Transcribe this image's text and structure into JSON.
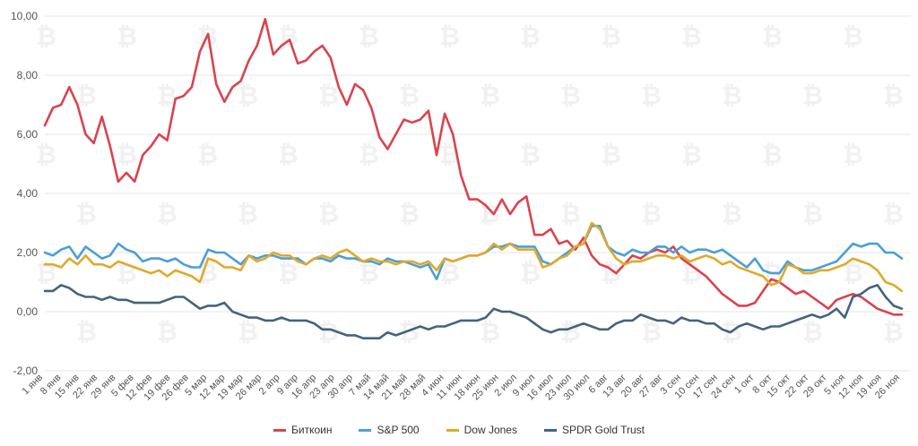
{
  "chart_data": {
    "type": "line",
    "title": "",
    "xlabel": "",
    "ylabel": "",
    "ylim": [
      -2,
      10
    ],
    "y_ticks": [
      "-2,00",
      "0,00",
      "2,00",
      "4,00",
      "6,00",
      "8,00",
      "10,00"
    ],
    "y_tick_values": [
      -2,
      0,
      2,
      4,
      6,
      8,
      10
    ],
    "grid": true,
    "legend_position": "bottom",
    "x_tick_labels": [
      "1 янв",
      "8 янв",
      "15 янв",
      "22 янв",
      "29 янв",
      "5 фев",
      "12 фев",
      "19 фев",
      "26 фев",
      "5 мар",
      "12 мар",
      "19 мар",
      "26 мар",
      "2 апр",
      "9 апр",
      "16 апр",
      "23 апр",
      "30 апр",
      "7 май",
      "14 май",
      "21 май",
      "28 май",
      "4 июн",
      "11 июн",
      "18 июн",
      "25 июн",
      "2 июл",
      "9 июл",
      "16 июл",
      "23 июл",
      "30 июл",
      "6 авг",
      "13 авг",
      "20 авг",
      "27 авг",
      "3 сен",
      "10 сен",
      "17 сен",
      "24 сен",
      "1 окт",
      "8 окт",
      "15 окт",
      "22 окт",
      "29 окт",
      "5 ноя",
      "12 ноя",
      "19 ноя",
      "26 ноя"
    ],
    "series": [
      {
        "name": "Биткоин",
        "color": "#d9444e",
        "values": [
          6.3,
          6.9,
          7.0,
          7.6,
          7.0,
          6.0,
          5.7,
          6.6,
          5.6,
          4.4,
          4.7,
          4.4,
          5.3,
          5.6,
          6.0,
          5.8,
          7.2,
          7.3,
          7.6,
          8.8,
          9.4,
          7.7,
          7.1,
          7.6,
          7.8,
          8.5,
          9.0,
          9.9,
          8.7,
          9.0,
          9.2,
          8.4,
          8.5,
          8.8,
          9.0,
          8.6,
          7.6,
          7.0,
          7.7,
          7.5,
          6.9,
          5.9,
          5.5,
          6.0,
          6.5,
          6.4,
          6.5,
          6.8,
          5.3,
          6.7,
          6.0,
          4.6,
          3.8,
          3.8,
          3.6,
          3.3,
          3.8,
          3.3,
          3.7,
          3.9,
          2.6,
          2.6,
          2.8,
          2.3,
          2.4,
          2.1,
          2.5,
          1.9,
          1.6,
          1.5,
          1.3,
          1.6,
          1.9,
          1.8,
          2.0,
          2.1,
          2.0,
          2.2,
          1.8,
          1.6,
          1.4,
          1.2,
          0.9,
          0.6,
          0.4,
          0.2,
          0.2,
          0.3,
          0.7,
          1.1,
          1.0,
          0.8,
          0.6,
          0.7,
          0.5,
          0.3,
          0.1,
          0.4,
          0.5,
          0.6,
          0.5,
          0.3,
          0.1,
          0.0,
          -0.1,
          -0.1
        ]
      },
      {
        "name": "S&P 500",
        "color": "#4a9fd8",
        "values": [
          2.0,
          1.9,
          2.1,
          2.2,
          1.8,
          2.2,
          2.0,
          1.8,
          1.9,
          2.3,
          2.1,
          2.0,
          1.7,
          1.8,
          1.8,
          1.7,
          1.8,
          1.6,
          1.5,
          1.5,
          2.1,
          2.0,
          2.0,
          1.8,
          1.6,
          1.9,
          1.8,
          1.9,
          1.9,
          1.8,
          1.8,
          1.8,
          1.6,
          1.8,
          1.8,
          1.7,
          1.9,
          1.8,
          1.8,
          1.7,
          1.7,
          1.6,
          1.8,
          1.7,
          1.7,
          1.6,
          1.5,
          1.6,
          1.1,
          1.8,
          1.7,
          1.8,
          1.9,
          1.9,
          2.0,
          2.2,
          2.2,
          2.3,
          2.2,
          2.2,
          2.2,
          1.7,
          1.6,
          1.8,
          2.0,
          2.2,
          2.3,
          2.9,
          2.9,
          2.2,
          2.0,
          1.9,
          2.1,
          2.0,
          2.0,
          2.2,
          2.2,
          2.0,
          2.2,
          2.0,
          2.1,
          2.1,
          2.0,
          2.1,
          1.9,
          1.7,
          1.5,
          1.8,
          1.4,
          1.3,
          1.3,
          1.7,
          1.5,
          1.4,
          1.4,
          1.5,
          1.6,
          1.7,
          2.0,
          2.3,
          2.2,
          2.3,
          2.3,
          2.0,
          2.0,
          1.8
        ]
      },
      {
        "name": "Dow Jones",
        "color": "#e0a92a",
        "values": [
          1.6,
          1.6,
          1.5,
          1.8,
          1.6,
          1.9,
          1.6,
          1.6,
          1.5,
          1.7,
          1.6,
          1.5,
          1.4,
          1.3,
          1.4,
          1.2,
          1.4,
          1.3,
          1.2,
          1.0,
          1.8,
          1.7,
          1.5,
          1.5,
          1.4,
          1.9,
          1.7,
          1.8,
          2.0,
          1.9,
          1.9,
          1.7,
          1.6,
          1.8,
          1.9,
          1.8,
          2.0,
          2.1,
          1.9,
          1.7,
          1.8,
          1.7,
          1.7,
          1.6,
          1.7,
          1.7,
          1.6,
          1.7,
          1.4,
          1.8,
          1.7,
          1.8,
          1.9,
          1.9,
          2.0,
          2.3,
          2.1,
          2.3,
          2.1,
          2.1,
          2.1,
          1.5,
          1.6,
          1.8,
          1.9,
          2.2,
          2.3,
          3.0,
          2.8,
          2.2,
          1.8,
          1.6,
          1.7,
          1.7,
          1.8,
          1.9,
          1.9,
          1.8,
          1.9,
          1.7,
          1.8,
          1.9,
          1.8,
          1.6,
          1.7,
          1.5,
          1.4,
          1.3,
          1.2,
          0.9,
          1.0,
          1.6,
          1.5,
          1.3,
          1.3,
          1.4,
          1.4,
          1.5,
          1.6,
          1.8,
          1.7,
          1.6,
          1.4,
          1.0,
          0.9,
          0.7
        ]
      },
      {
        "name": "SPDR Gold Trust",
        "color": "#44637e",
        "values": [
          0.7,
          0.7,
          0.9,
          0.8,
          0.6,
          0.5,
          0.5,
          0.4,
          0.5,
          0.4,
          0.4,
          0.3,
          0.3,
          0.3,
          0.3,
          0.4,
          0.5,
          0.5,
          0.3,
          0.1,
          0.2,
          0.2,
          0.3,
          0.0,
          -0.1,
          -0.2,
          -0.2,
          -0.3,
          -0.3,
          -0.2,
          -0.3,
          -0.3,
          -0.3,
          -0.4,
          -0.6,
          -0.6,
          -0.7,
          -0.8,
          -0.8,
          -0.9,
          -0.9,
          -0.9,
          -0.7,
          -0.8,
          -0.7,
          -0.6,
          -0.5,
          -0.6,
          -0.5,
          -0.5,
          -0.4,
          -0.3,
          -0.3,
          -0.3,
          -0.2,
          0.1,
          0.0,
          0.0,
          -0.1,
          -0.2,
          -0.4,
          -0.6,
          -0.7,
          -0.6,
          -0.6,
          -0.5,
          -0.4,
          -0.5,
          -0.6,
          -0.6,
          -0.4,
          -0.3,
          -0.3,
          -0.1,
          -0.2,
          -0.3,
          -0.3,
          -0.4,
          -0.2,
          -0.3,
          -0.3,
          -0.4,
          -0.4,
          -0.6,
          -0.7,
          -0.5,
          -0.4,
          -0.5,
          -0.6,
          -0.5,
          -0.5,
          -0.4,
          -0.3,
          -0.2,
          -0.1,
          -0.2,
          -0.1,
          0.1,
          -0.2,
          0.5,
          0.6,
          0.8,
          0.9,
          0.5,
          0.2,
          0.1
        ]
      }
    ]
  }
}
